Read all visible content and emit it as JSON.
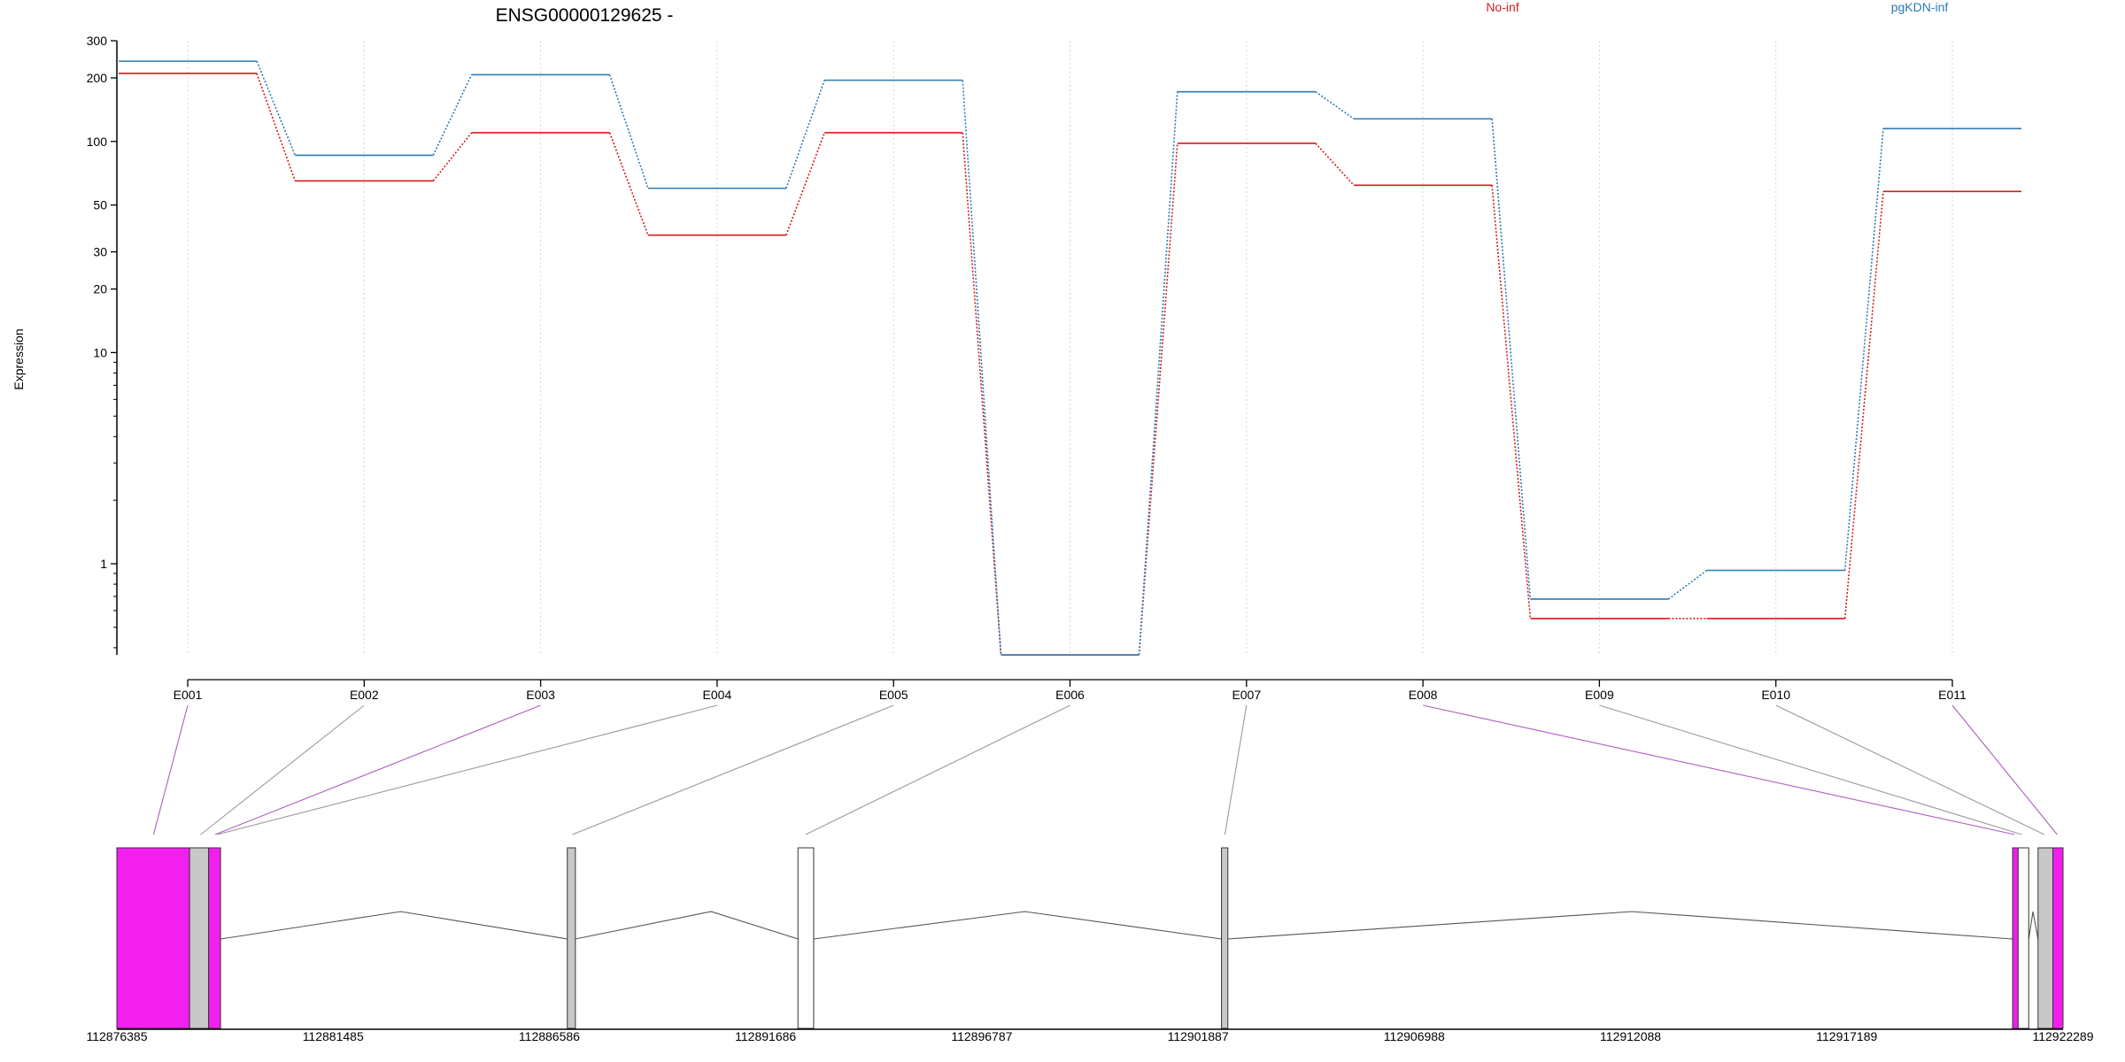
{
  "chart_data": {
    "type": "line",
    "title": "ENSG00000129625 -",
    "ylabel": "Expression",
    "xlabel": "",
    "y_scale": "log",
    "ylim": [
      0.37,
      300
    ],
    "y_major_ticks": [
      1,
      10,
      20,
      30,
      50,
      100,
      200,
      300
    ],
    "y_minor_ticks": [
      0.4,
      0.5,
      0.6,
      0.7,
      0.8,
      0.9,
      2,
      3,
      4,
      5,
      6,
      7,
      8,
      9
    ],
    "categories": [
      "E001",
      "E002",
      "E003",
      "E004",
      "E005",
      "E006",
      "E007",
      "E008",
      "E009",
      "E010",
      "E011"
    ],
    "legend_placement": "top",
    "grid": "vertical dotted",
    "series": [
      {
        "name": "No-inf",
        "color": "#d7191c",
        "values": [
          210,
          65,
          110,
          36,
          110,
          0.37,
          98,
          62,
          0.55,
          0.55,
          58
        ]
      },
      {
        "name": "pgKDN-inf",
        "color": "#2c7bb6",
        "values": [
          240,
          86,
          207,
          60,
          195,
          0.37,
          172,
          128,
          0.68,
          0.93,
          115
        ]
      }
    ],
    "gene_model": {
      "coordinate_labels": [
        "112876385",
        "112881485",
        "112886586",
        "112891686",
        "112896787",
        "112901887",
        "112906988",
        "112912088",
        "112917189",
        "112922289"
      ],
      "coord_range": [
        112876385,
        112922289
      ],
      "exons": [
        {
          "start": 112876385,
          "end": 112878100,
          "color": "#f21fee"
        },
        {
          "start": 112878100,
          "end": 112878550,
          "color": "#c8c8c8"
        },
        {
          "start": 112878550,
          "end": 112878830,
          "color": "#f21fee"
        },
        {
          "start": 112887010,
          "end": 112887200,
          "color": "#c8c8c8"
        },
        {
          "start": 112892450,
          "end": 112892820,
          "color": "#ffffff"
        },
        {
          "start": 112902440,
          "end": 112902590,
          "color": "#c8c8c8"
        },
        {
          "start": 112921100,
          "end": 112921230,
          "color": "#f21fee"
        },
        {
          "start": 112921230,
          "end": 112921480,
          "color": "#ffffff"
        },
        {
          "start": 112921700,
          "end": 112922050,
          "color": "#c8c8c8"
        },
        {
          "start": 112922050,
          "end": 112922289,
          "color": "#f21fee"
        }
      ],
      "introns": [
        {
          "from": 112878830,
          "peak": 112883080,
          "to": 112887010
        },
        {
          "from": 112887200,
          "peak": 112890400,
          "to": 112892450
        },
        {
          "from": 112892820,
          "peak": 112897800,
          "to": 112902440
        },
        {
          "from": 112902590,
          "peak": 112912120,
          "to": 112921100
        },
        {
          "from": 112921480,
          "peak": 112921580,
          "to": 112921700
        }
      ],
      "connectors": [
        {
          "exon": "E001",
          "coord": 112877250,
          "color": "#b05cc0"
        },
        {
          "exon": "E002",
          "coord": 112878360,
          "color": "#9a9a9a"
        },
        {
          "exon": "E003",
          "coord": 112878700,
          "color": "#b05cc0"
        },
        {
          "exon": "E004",
          "coord": 112878750,
          "color": "#9a9a9a"
        },
        {
          "exon": "E005",
          "coord": 112887130,
          "color": "#9a9a9a"
        },
        {
          "exon": "E006",
          "coord": 112892630,
          "color": "#9a9a9a"
        },
        {
          "exon": "E007",
          "coord": 112902520,
          "color": "#9a9a9a"
        },
        {
          "exon": "E008",
          "coord": 112921150,
          "color": "#b05cc0"
        },
        {
          "exon": "E009",
          "coord": 112921320,
          "color": "#9a9a9a"
        },
        {
          "exon": "E010",
          "coord": 112921850,
          "color": "#9a9a9a"
        },
        {
          "exon": "E011",
          "coord": 112922150,
          "color": "#b05cc0"
        }
      ]
    }
  }
}
